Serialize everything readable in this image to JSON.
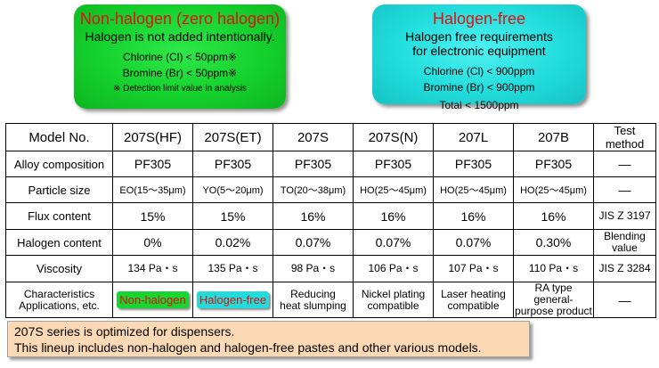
{
  "non_halogen_box": {
    "title": "Non-halogen (zero halogen)",
    "subtitle": "Halogen is not added intentionally.",
    "chlorine": "Chlorine (Cl) < 50ppm※",
    "bromine": "Bromine (Br) < 50ppm※",
    "note": "※ Detection limit value in analysis",
    "color": "#14d12c"
  },
  "halogen_free_box": {
    "title": "Halogen-free",
    "subtitle_line1": "Halogen free requirements",
    "subtitle_line2": "for electronic equipment",
    "chlorine": "Chlorine (Cl) < 900ppm",
    "bromine": "Bromine (Br) < 900ppm",
    "total": "Total < 1500ppm",
    "color": "#22dcdc"
  },
  "table": {
    "header": [
      "Model No.",
      "207S(HF)",
      "207S(ET)",
      "207S",
      "207S(N)",
      "207L",
      "207B",
      "Test method"
    ],
    "rows": [
      [
        "Alloy composition",
        "PF305",
        "PF305",
        "PF305",
        "PF305",
        "PF305",
        "PF305",
        "―"
      ],
      [
        "Particle size",
        "EO(15～35μm)",
        "YO(5～20μm)",
        "TO(20～38μm)",
        "HO(25～45μm)",
        "HO(25～45μm)",
        "HO(25～45μm)",
        "―"
      ],
      [
        "Flux content",
        "15%",
        "15%",
        "16%",
        "16%",
        "16%",
        "16%",
        "JIS Z 3197"
      ],
      [
        "Halogen content",
        "0%",
        "0.02%",
        "0.07%",
        "0.07%",
        "0.07%",
        "0.30%",
        "Blending value"
      ],
      [
        "Viscosity",
        "134 Pa・s",
        "135 Pa・s",
        "98 Pa・s",
        "106 Pa・s",
        "107 Pa・s",
        "110 Pa・s",
        "JIS Z 3284"
      ]
    ],
    "characteristics": {
      "label_line1": "Characteristics",
      "label_line2": "Applications, etc.",
      "badge1": "Non-halogen",
      "badge2": "Halogen-free",
      "c3_l1": "Reducing",
      "c3_l2": "heat slumping",
      "c4_l1": "Nickel plating",
      "c4_l2": "compatible",
      "c5_l1": "Laser heating",
      "c5_l2": "compatible",
      "c6_l1": "RA type general-",
      "c6_l2": "purpose product",
      "test": "―"
    }
  },
  "note_box": {
    "line1": "207S series is optimized for dispensers.",
    "line2": "This lineup includes non-halogen and halogen-free pastes and other various models."
  }
}
